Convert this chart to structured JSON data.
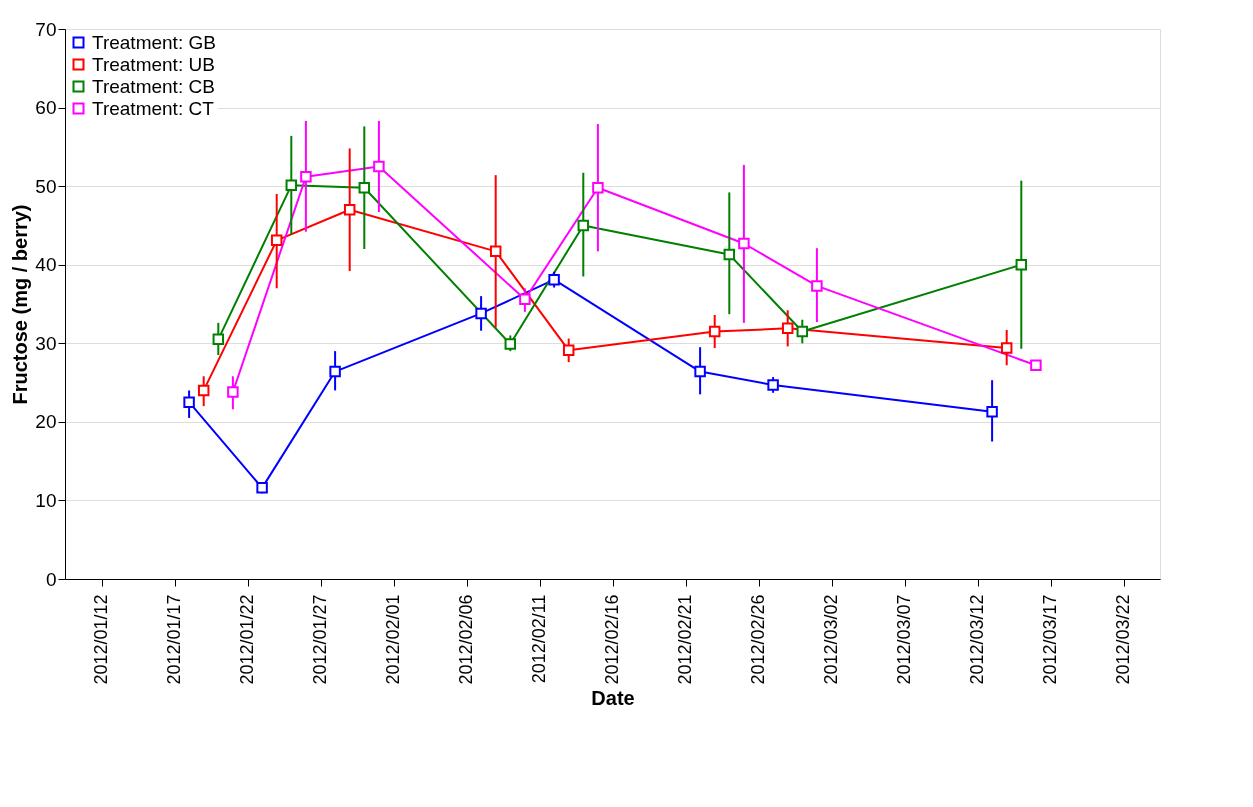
{
  "chart_data": {
    "type": "line",
    "xlabel": "Date",
    "ylabel": "Fructose (mg / berry)",
    "xlim": [
      "2012-01-09T12:00",
      "2012-03-24T12:00"
    ],
    "xticks": [
      {
        "value": "2012-01-12",
        "label": "2012/01/12"
      },
      {
        "value": "2012-01-17",
        "label": "2012/01/17"
      },
      {
        "value": "2012-01-22",
        "label": "2012/01/22"
      },
      {
        "value": "2012-01-27",
        "label": "2012/01/27"
      },
      {
        "value": "2012-02-01",
        "label": "2012/02/01"
      },
      {
        "value": "2012-02-06",
        "label": "2012/02/06"
      },
      {
        "value": "2012-02-11",
        "label": "2012/02/11"
      },
      {
        "value": "2012-02-16",
        "label": "2012/02/16"
      },
      {
        "value": "2012-02-21",
        "label": "2012/02/21"
      },
      {
        "value": "2012-02-26",
        "label": "2012/02/26"
      },
      {
        "value": "2012-03-02",
        "label": "2012/03/02"
      },
      {
        "value": "2012-03-07",
        "label": "2012/03/07"
      },
      {
        "value": "2012-03-12",
        "label": "2012/03/12"
      },
      {
        "value": "2012-03-17",
        "label": "2012/03/17"
      },
      {
        "value": "2012-03-22",
        "label": "2012/03/22"
      }
    ],
    "ylim": [
      0,
      70
    ],
    "yticks": [
      0,
      10,
      20,
      30,
      40,
      50,
      60,
      70
    ],
    "grid": "y",
    "legend": "top left",
    "marker": "square",
    "line_style": "solid",
    "series": [
      {
        "name": "Treatment: GB",
        "color": "#0000ff",
        "x": [
          "2012-01-18",
          "2012-01-23",
          "2012-01-28",
          "2012-02-07",
          "2012-02-12",
          "2012-02-22",
          "2012-02-27",
          "2012-03-13"
        ],
        "values": [
          22.5,
          11.6,
          26.4,
          33.8,
          38.1,
          26.4,
          24.7,
          21.3
        ],
        "errors": [
          [
            20.5,
            24
          ],
          [
            10.9,
            12.3
          ],
          [
            24,
            29
          ],
          [
            31.6,
            36
          ],
          [
            37.1,
            39.1
          ],
          [
            23.5,
            29.5
          ],
          [
            23.7,
            25.7
          ],
          [
            17.5,
            25.3
          ]
        ]
      },
      {
        "name": "Treatment: UB",
        "color": "#ff0000",
        "x": [
          "2012-01-19",
          "2012-01-24",
          "2012-01-29",
          "2012-02-08",
          "2012-02-13",
          "2012-02-23",
          "2012-02-28",
          "2012-03-14"
        ],
        "values": [
          24.0,
          43.1,
          47.0,
          41.7,
          29.1,
          31.5,
          31.9,
          29.4
        ],
        "errors": [
          [
            22,
            25.8
          ],
          [
            37,
            49
          ],
          [
            39.2,
            54.8
          ],
          [
            32,
            51.4
          ],
          [
            27.6,
            30.6
          ],
          [
            29.4,
            33.6
          ],
          [
            29.6,
            34.2
          ],
          [
            27.2,
            31.7
          ]
        ]
      },
      {
        "name": "Treatment: CB",
        "color": "#008000",
        "x": [
          "2012-01-20",
          "2012-01-25",
          "2012-01-30",
          "2012-02-09",
          "2012-02-14",
          "2012-02-24",
          "2012-02-29",
          "2012-03-15"
        ],
        "values": [
          30.5,
          50.1,
          49.8,
          29.9,
          45.0,
          41.3,
          31.5,
          40.0
        ],
        "errors": [
          [
            28.5,
            32.6
          ],
          [
            43.8,
            56.4
          ],
          [
            42,
            57.6
          ],
          [
            29,
            31
          ],
          [
            38.5,
            51.7
          ],
          [
            33.7,
            49.2
          ],
          [
            30,
            33
          ],
          [
            29.3,
            50.7
          ]
        ]
      },
      {
        "name": "Treatment: CT",
        "color": "#ff00ff",
        "x": [
          "2012-01-21",
          "2012-01-26",
          "2012-01-31",
          "2012-02-10",
          "2012-02-15",
          "2012-02-25",
          "2012-03-01",
          "2012-03-16"
        ],
        "values": [
          23.8,
          51.2,
          52.5,
          35.6,
          49.8,
          42.7,
          37.3,
          27.2
        ],
        "errors": [
          [
            21.6,
            25.8
          ],
          [
            44.2,
            58.3
          ],
          [
            46.7,
            58.3
          ],
          [
            34,
            37
          ],
          [
            41.7,
            57.9
          ],
          [
            32.6,
            52.7
          ],
          [
            32.7,
            42.1
          ],
          [
            26.6,
            27.8
          ]
        ]
      }
    ]
  }
}
